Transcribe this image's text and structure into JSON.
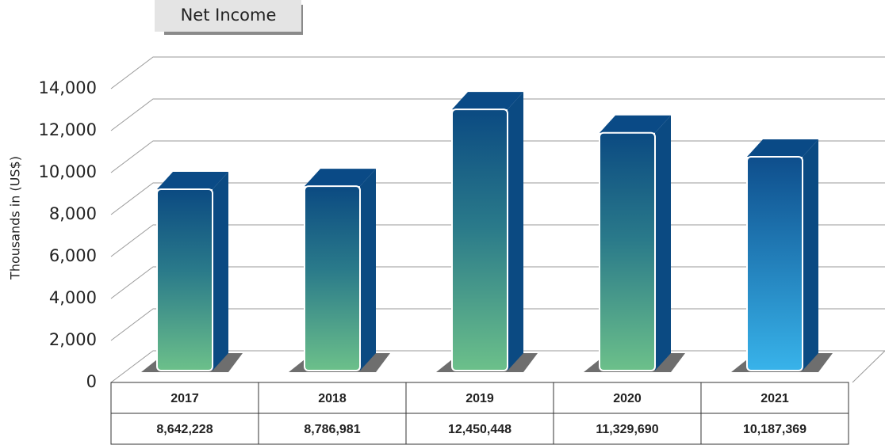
{
  "chart_data": {
    "type": "bar3d",
    "title": "Net Income",
    "y_label": "Thousands in (US$)",
    "categories": [
      "2017",
      "2018",
      "2019",
      "2020",
      "2021"
    ],
    "values": [
      8642.228,
      8786.981,
      12450.448,
      11329.69,
      10187.369
    ],
    "value_labels": [
      "8,642,228",
      "8,786,981",
      "12,450,448",
      "11,329,690",
      "10,187,369"
    ],
    "ylim": [
      0,
      14000
    ],
    "yticks": [
      0,
      {
        "value": 2000,
        "label": "2,000"
      },
      {
        "value": 4000,
        "label": "4,000"
      },
      {
        "value": 6000,
        "label": "6,000"
      },
      {
        "value": 8000,
        "label": "8,000"
      },
      {
        "value": 10000,
        "label": "10,000"
      },
      {
        "value": 12000,
        "label": "12,000"
      },
      {
        "value": 14000,
        "label": "14,000"
      }
    ],
    "grid": true
  }
}
